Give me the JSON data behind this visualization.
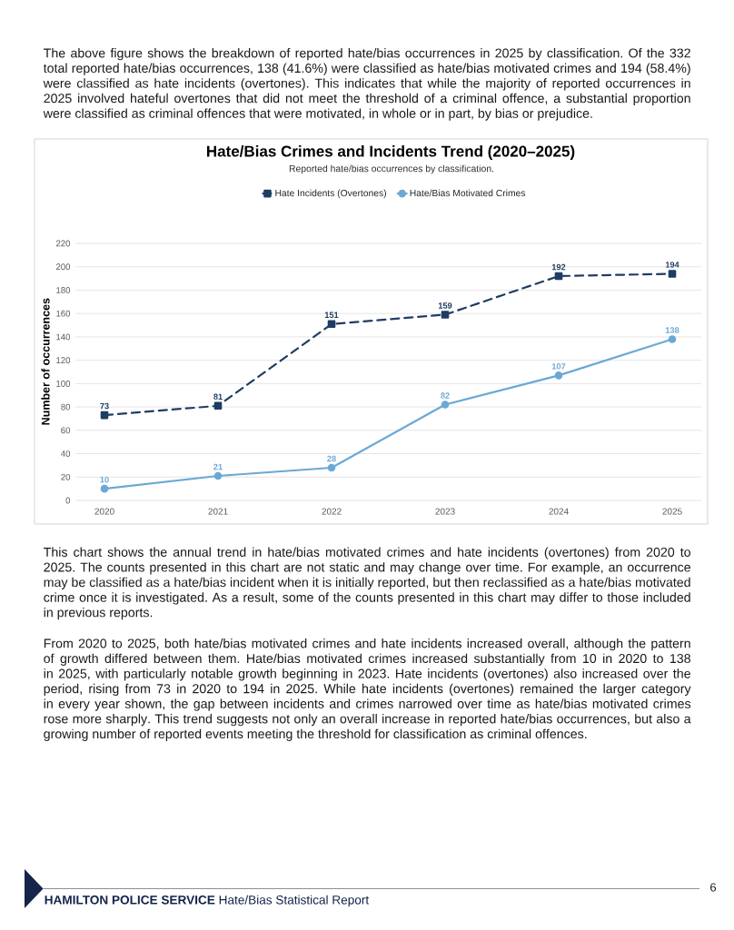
{
  "chart_data": {
    "type": "line",
    "title": "Hate/Bias Crimes and Incidents Trend (2020–2025)",
    "subtitle": "Reported hate/bias occurrences by classification.",
    "ylabel": "Number of occurrences",
    "categories": [
      "2020",
      "2021",
      "2022",
      "2023",
      "2024",
      "2025"
    ],
    "series": [
      {
        "name": "Hate Incidents (Overtones)",
        "color": "#1f3d63",
        "marker": "square",
        "line_style": "dashed",
        "values": [
          73,
          81,
          151,
          159,
          192,
          194
        ]
      },
      {
        "name": "Hate/Bias Motivated Crimes",
        "color": "#6aa8d5",
        "marker": "circle",
        "line_style": "solid",
        "values": [
          10,
          21,
          28,
          82,
          107,
          138
        ]
      }
    ],
    "ylim": [
      0,
      220
    ],
    "yticks": [
      0,
      20,
      40,
      60,
      80,
      100,
      120,
      140,
      160,
      180,
      200,
      220
    ],
    "grid": "y",
    "legend": "top",
    "data_labels": true,
    "annotations": [
      "The above figure shows the breakdown of reported hate/bias occurrences in 2025 by classification. Of the 332 total reported hate/bias occurrences, 138 (41.6%) were classified as hate/bias motivated crimes and 194 (58.4%) were classified as hate incidents (overtones). This indicates that while the majority of reported occurrences in 2025 involved hateful overtones that did not meet the threshold of a criminal offence, a substantial proportion were classified as criminal offences that were motivated, in whole or in part, by bias or prejudice.",
      "This chart shows the annual trend in hate/bias motivated crimes and hate incidents (overtones) from 2020 to 2025. The counts presented in this chart are not static and may change over time. For example, an occurrence may be classified as a hate/bias incident when it is initially reported, but then reclassified as a hate/bias motivated crime once it is investigated. As a result, some of the counts presented in this chart may differ to those included in previous reports.",
      "From 2020 to 2025, both hate/bias motivated crimes and hate incidents increased overall, although the pattern of growth differed between them. Hate/bias motivated crimes increased substantially from 10 in 2020 to 138 in 2025, with particularly notable growth beginning in 2023. Hate incidents (overtones) also increased over the period, rising from 73 in 2020 to 194 in 2025. While hate incidents (overtones) remained the larger category in every year shown, the gap between incidents and crimes narrowed over time as hate/bias motivated crimes rose more sharply. This trend suggests not only an overall increase in reported hate/bias occurrences, but also a growing number of reported events meeting the threshold for classification as criminal offences.",
      "**HAMILTON POLICE SERVICE** Hate/Bias Statistical Report",
      "6"
    ]
  }
}
